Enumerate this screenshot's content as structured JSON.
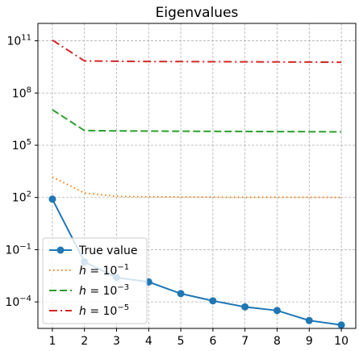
{
  "chart_data": {
    "type": "line",
    "title": "Eigenvalues",
    "xlabel": "",
    "ylabel": "",
    "x": [
      1,
      2,
      3,
      4,
      5,
      6,
      7,
      8,
      9,
      10
    ],
    "xlim": [
      0.55,
      10.45
    ],
    "ylim": [
      3e-06,
      1000000000000.0
    ],
    "yscale": "log",
    "grid": true,
    "legend_position": "lower-left",
    "x_ticks": [
      1,
      2,
      3,
      4,
      5,
      6,
      7,
      8,
      9,
      10
    ],
    "y_ticks": [
      {
        "value": 0.0001,
        "base": "10",
        "exp": "−4"
      },
      {
        "value": 0.1,
        "base": "10",
        "exp": "−1"
      },
      {
        "value": 100.0,
        "base": "10",
        "exp": "2"
      },
      {
        "value": 100000.0,
        "base": "10",
        "exp": "5"
      },
      {
        "value": 100000000.0,
        "base": "10",
        "exp": "8"
      },
      {
        "value": 100000000000.0,
        "base": "10",
        "exp": "11"
      }
    ],
    "series": [
      {
        "name": "True value",
        "label_main": "True value",
        "label_exp": "",
        "color": "#1f77b4",
        "dash": "",
        "marker": true,
        "values": [
          80,
          0.02,
          0.0025,
          0.0014,
          0.0003,
          0.000115,
          5.15e-05,
          3.2e-05,
          8.5e-06,
          4.7e-06
        ]
      },
      {
        "name": "h = 10^-1",
        "label_main": "h = 10",
        "label_exp": "−1",
        "color": "#ff7f0e",
        "dash": "1.5,3.5",
        "marker": false,
        "values": [
          1500,
          180,
          115,
          110,
          107,
          105,
          104,
          103,
          102,
          101
        ]
      },
      {
        "name": "h = 10^-3",
        "label_main": "h = 10",
        "label_exp": "−3",
        "color": "#2ca02c",
        "dash": "9,4",
        "marker": false,
        "values": [
          11000000,
          700000,
          670000,
          650000,
          640000,
          630000,
          620000,
          610000,
          600000,
          590000
        ]
      },
      {
        "name": "h = 10^-5",
        "label_main": "h = 10",
        "label_exp": "−5",
        "color": "#d62728",
        "dash": "10,4,2,4",
        "marker": false,
        "values": [
          110000000000.0,
          7000000000.0,
          6700000000.0,
          6500000000.0,
          6400000000.0,
          6300000000.0,
          6200000000.0,
          6100000000.0,
          6000000000.0,
          5900000000.0
        ]
      }
    ]
  }
}
